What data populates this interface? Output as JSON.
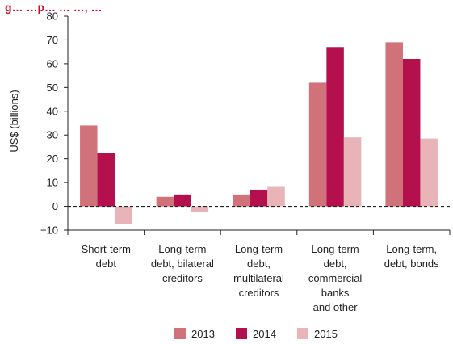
{
  "chart_data": {
    "type": "bar",
    "title": "g… …p… … …, …",
    "ylabel": "US$ (billions)",
    "ylim": [
      -10,
      80
    ],
    "yticks": [
      -10,
      0,
      10,
      20,
      30,
      40,
      50,
      60,
      70,
      80
    ],
    "ytick_labels": [
      "−10",
      "0",
      "10",
      "20",
      "30",
      "40",
      "50",
      "60",
      "70",
      "80"
    ],
    "grid": false,
    "zero_line": "dashed",
    "legend_placement": "bottom-center",
    "categories": [
      [
        "Short-term",
        "debt"
      ],
      [
        "Long-term",
        "debt, bilateral",
        "creditors"
      ],
      [
        "Long-term",
        "debt,",
        "multilateral",
        "creditors"
      ],
      [
        "Long-term",
        "debt,",
        "commercial",
        "banks",
        "and other"
      ],
      [
        "Long-term,",
        "debt, bonds"
      ]
    ],
    "series": [
      {
        "name": "2013",
        "color": "#d1727a",
        "values": [
          34,
          4,
          5,
          52,
          69
        ]
      },
      {
        "name": "2014",
        "color": "#b5104e",
        "values": [
          22.5,
          5,
          7,
          67,
          62
        ]
      },
      {
        "name": "2015",
        "color": "#e8b4b8",
        "values": [
          -7.5,
          -2.5,
          8.5,
          29,
          28.5
        ]
      }
    ]
  }
}
